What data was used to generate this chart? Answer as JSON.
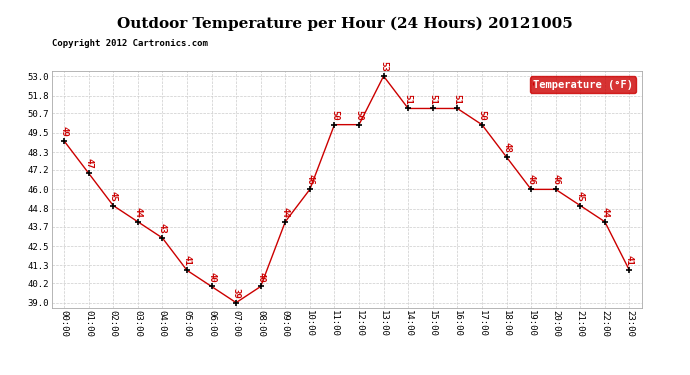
{
  "title": "Outdoor Temperature per Hour (24 Hours) 20121005",
  "copyright": "Copyright 2012 Cartronics.com",
  "legend_label": "Temperature (°F)",
  "hours": [
    0,
    1,
    2,
    3,
    4,
    5,
    6,
    7,
    8,
    9,
    10,
    11,
    12,
    13,
    14,
    15,
    16,
    17,
    18,
    19,
    20,
    21,
    22,
    23
  ],
  "temps": [
    49,
    47,
    45,
    44,
    43,
    41,
    40,
    39,
    40,
    44,
    46,
    50,
    50,
    53,
    51,
    51,
    51,
    50,
    48,
    46,
    46,
    45,
    44,
    41
  ],
  "x_labels": [
    "00:00",
    "01:00",
    "02:00",
    "03:00",
    "04:00",
    "05:00",
    "06:00",
    "07:00",
    "08:00",
    "09:00",
    "10:00",
    "11:00",
    "12:00",
    "13:00",
    "14:00",
    "15:00",
    "16:00",
    "17:00",
    "18:00",
    "19:00",
    "20:00",
    "21:00",
    "22:00",
    "23:00"
  ],
  "y_ticks": [
    39.0,
    40.2,
    41.3,
    42.5,
    43.7,
    44.8,
    46.0,
    47.2,
    48.3,
    49.5,
    50.7,
    51.8,
    53.0
  ],
  "ylim": [
    38.7,
    53.3
  ],
  "xlim": [
    -0.5,
    23.5
  ],
  "line_color": "#cc0000",
  "marker": "+",
  "marker_color": "#000000",
  "label_color": "#cc0000",
  "grid_color": "#cccccc",
  "bg_color": "#ffffff",
  "title_fontsize": 11,
  "copyright_fontsize": 6.5,
  "legend_bg": "#cc0000",
  "legend_text_color": "#ffffff",
  "label_fontsize": 6.5,
  "tick_fontsize": 6.5
}
